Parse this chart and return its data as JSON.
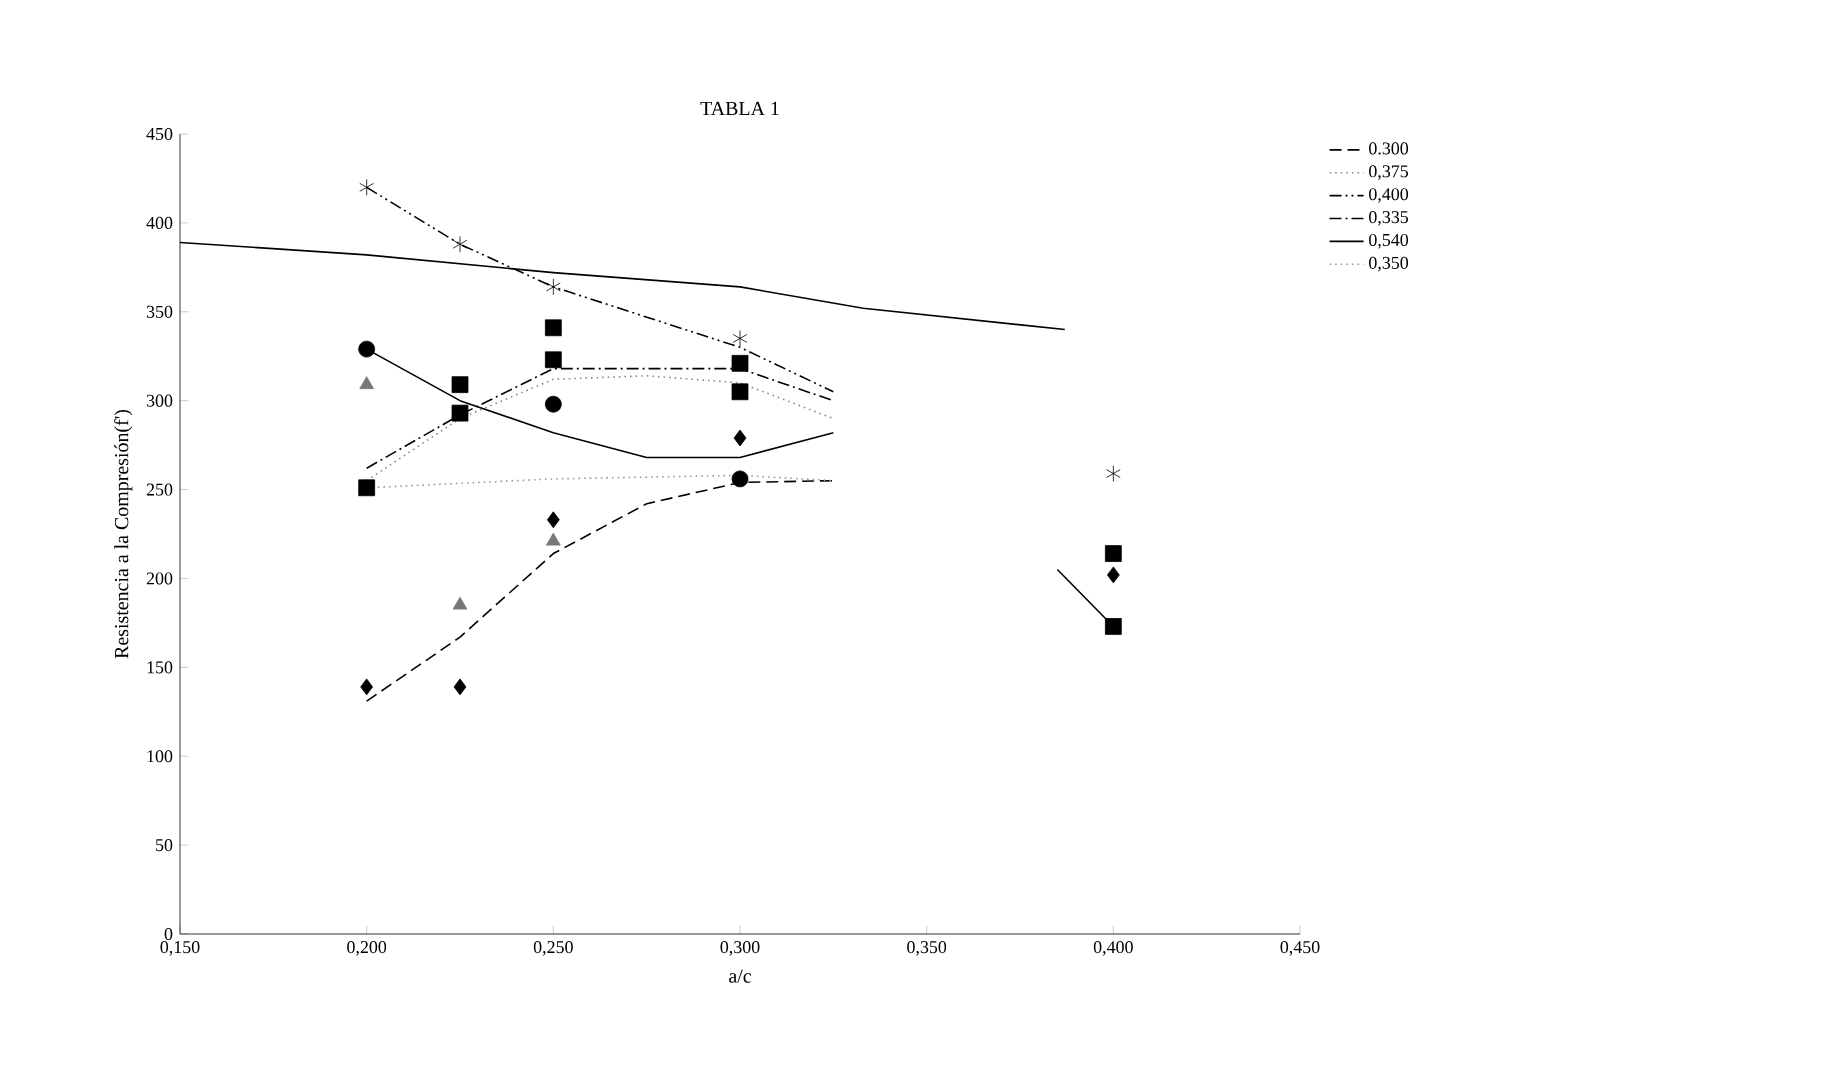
{
  "chart_data": {
    "type": "line",
    "title": "TABLA 1",
    "xlabel": "a/c",
    "ylabel": "Resistencia a la Compresión(f')",
    "xlim": [
      0.15,
      0.45
    ],
    "xticks": [
      {
        "value": 0.15,
        "label": "0,150"
      },
      {
        "value": 0.2,
        "label": "0,200"
      },
      {
        "value": 0.25,
        "label": "0,250"
      },
      {
        "value": 0.3,
        "label": "0,300"
      },
      {
        "value": 0.35,
        "label": "0,350"
      },
      {
        "value": 0.4,
        "label": "0,400"
      },
      {
        "value": 0.45,
        "label": "0,450"
      }
    ],
    "ylim": [
      0,
      450
    ],
    "yticks": [
      0,
      50,
      100,
      150,
      200,
      250,
      300,
      350,
      400,
      450
    ],
    "legend": "right",
    "grid": false,
    "series": [
      {
        "name": "0.300",
        "color": "#000000",
        "line_style": "dashed",
        "marker": "none",
        "x": [
          0.2,
          0.225,
          0.25,
          0.275,
          0.3,
          0.325
        ],
        "values": [
          131,
          167,
          214,
          242,
          254,
          255
        ]
      },
      {
        "name": "0,375",
        "color": "#888888",
        "line_style": "dotted",
        "marker": "none",
        "x": [
          0.2,
          0.225,
          0.25,
          0.275,
          0.3,
          0.325
        ],
        "values": [
          255,
          290,
          312,
          314,
          310,
          290
        ]
      },
      {
        "name": "0,400",
        "color": "#000000",
        "line_style": "dashdotdot",
        "marker": "none",
        "x": [
          0.2,
          0.225,
          0.25,
          0.3,
          0.325
        ],
        "values": [
          420,
          388,
          364,
          330,
          305
        ]
      },
      {
        "name": "0,335",
        "color": "#000000",
        "line_style": "dashdot",
        "marker": "none",
        "x": [
          0.2,
          0.225,
          0.25,
          0.3,
          0.325
        ],
        "values": [
          262,
          292,
          318,
          318,
          300
        ]
      },
      {
        "name": "0,540",
        "color": "#000000",
        "line_style": "solid",
        "marker": "none",
        "x": [
          0.15,
          0.2,
          0.25,
          0.3,
          0.333,
          0.387
        ],
        "values": [
          389,
          382,
          372,
          364,
          352,
          340
        ]
      },
      {
        "name": "0,350",
        "color": "#999999",
        "line_style": "dotted",
        "marker": "none",
        "x": [
          0.2,
          0.25,
          0.3,
          0.325
        ],
        "values": [
          251,
          256,
          258,
          255
        ]
      },
      {
        "color": "#000000",
        "line_style": "solid",
        "marker": "none",
        "x": [
          0.2,
          0.225,
          0.25,
          0.275,
          0.3,
          0.325
        ],
        "values": [
          329,
          300,
          282,
          268,
          268,
          282
        ]
      },
      {
        "color": "#000000",
        "line_style": "solid",
        "marker": "none",
        "x": [
          0.385,
          0.4
        ],
        "values": [
          205,
          173
        ]
      },
      {
        "type": "scatter",
        "color": "#000000",
        "marker": "cross",
        "x": [
          0.2,
          0.225,
          0.25,
          0.3,
          0.4
        ],
        "values": [
          420,
          388,
          364,
          335,
          259
        ]
      },
      {
        "type": "scatter",
        "color": "#000000",
        "marker": "square",
        "x": [
          0.225,
          0.25,
          0.3,
          0.4
        ],
        "values": [
          309,
          341,
          321,
          214
        ]
      },
      {
        "type": "scatter",
        "color": "#000000",
        "marker": "square",
        "x": [
          0.2,
          0.225,
          0.25,
          0.3,
          0.4
        ],
        "values": [
          251,
          293,
          323,
          305,
          173
        ]
      },
      {
        "type": "scatter",
        "color": "#000000",
        "marker": "circle",
        "x": [
          0.2,
          0.25,
          0.3
        ],
        "values": [
          329,
          298,
          256
        ]
      },
      {
        "type": "scatter",
        "color": "#000000",
        "marker": "diamond",
        "x": [
          0.2,
          0.225,
          0.25,
          0.3,
          0.4
        ],
        "values": [
          139,
          139,
          233,
          279,
          202
        ]
      },
      {
        "type": "scatter",
        "color": "#777777",
        "marker": "triangle",
        "x": [
          0.2,
          0.225,
          0.25
        ],
        "values": [
          309,
          185,
          221
        ]
      }
    ]
  }
}
